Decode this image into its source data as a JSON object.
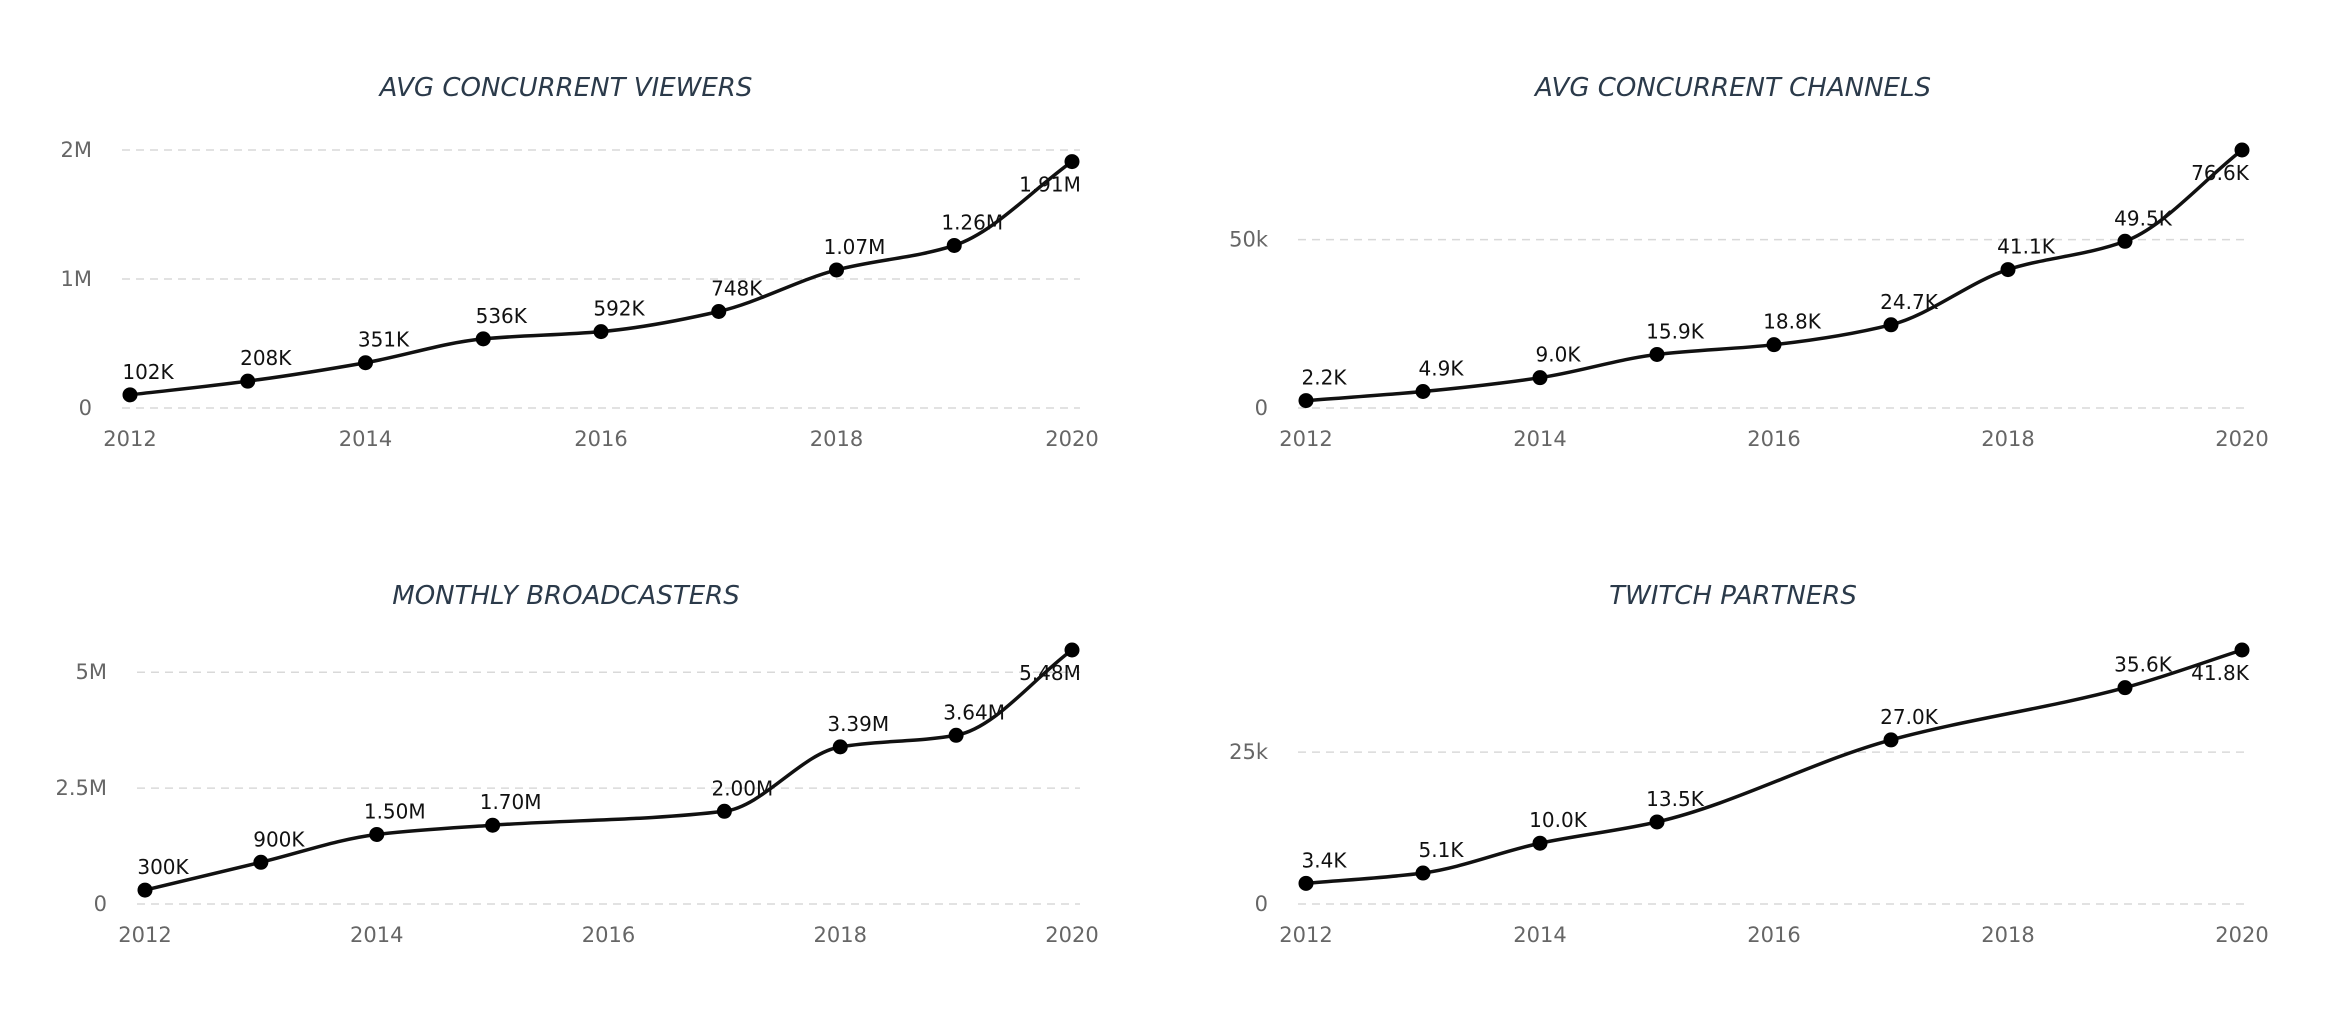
{
  "chart_data": [
    {
      "type": "line",
      "title": "AVG CONCURRENT VIEWERS",
      "x": [
        2012,
        2013,
        2014,
        2015,
        2016,
        2017,
        2018,
        2019,
        2020
      ],
      "values": [
        102000,
        208000,
        351000,
        536000,
        592000,
        748000,
        1070000,
        1260000,
        1910000
      ],
      "data_labels": [
        "102K",
        "208K",
        "351K",
        "536K",
        "592K",
        "748K",
        "1.07M",
        "1.26M",
        "1.91M"
      ],
      "xticks": [
        2012,
        2014,
        2016,
        2018,
        2020
      ],
      "xtick_labels": [
        "2012",
        "2014",
        "2016",
        "2018",
        "2020"
      ],
      "yticks": [
        0,
        1000000,
        2000000
      ],
      "ytick_labels": [
        "0",
        "1M",
        "2M"
      ],
      "xlim": [
        2012,
        2020
      ],
      "ylim": [
        0,
        2000000
      ],
      "grid": true
    },
    {
      "type": "line",
      "title": "AVG CONCURRENT CHANNELS",
      "x": [
        2012,
        2013,
        2014,
        2015,
        2016,
        2017,
        2018,
        2019,
        2020
      ],
      "values": [
        2200,
        4900,
        9000,
        15900,
        18800,
        24700,
        41100,
        49500,
        76600
      ],
      "data_labels": [
        "2.2K",
        "4.9K",
        "9.0K",
        "15.9K",
        "18.8K",
        "24.7K",
        "41.1K",
        "49.5K",
        "76.6K"
      ],
      "xticks": [
        2012,
        2014,
        2016,
        2018,
        2020
      ],
      "xtick_labels": [
        "2012",
        "2014",
        "2016",
        "2018",
        "2020"
      ],
      "yticks": [
        0,
        50000
      ],
      "ytick_labels": [
        "0",
        "50k"
      ],
      "xlim": [
        2012,
        2020
      ],
      "ylim": [
        0,
        76600
      ],
      "grid": true
    },
    {
      "type": "line",
      "title": "MONTHLY BROADCASTERS",
      "x": [
        2012,
        2013,
        2014,
        2015,
        2017,
        2018,
        2019,
        2020
      ],
      "values": [
        300000,
        900000,
        1500000,
        1700000,
        2000000,
        3390000,
        3640000,
        5480000
      ],
      "data_labels": [
        "300K",
        "900K",
        "1.50M",
        "1.70M",
        "2.00M",
        "3.39M",
        "3.64M",
        "5.48M"
      ],
      "xticks": [
        2012,
        2014,
        2016,
        2018,
        2020
      ],
      "xtick_labels": [
        "2012",
        "2014",
        "2016",
        "2018",
        "2020"
      ],
      "yticks": [
        0,
        2500000,
        5000000
      ],
      "ytick_labels": [
        "0",
        "2.5M",
        "5M"
      ],
      "xlim": [
        2012,
        2020
      ],
      "ylim": [
        0,
        5480000
      ],
      "grid": true
    },
    {
      "type": "line",
      "title": "TWITCH PARTNERS",
      "x": [
        2012,
        2013,
        2014,
        2015,
        2017,
        2019,
        2020
      ],
      "values": [
        3400,
        5100,
        10000,
        13500,
        27000,
        35600,
        41800
      ],
      "data_labels": [
        "3.4K",
        "5.1K",
        "10.0K",
        "13.5K",
        "27.0K",
        "35.6K",
        "41.8K"
      ],
      "xticks": [
        2012,
        2014,
        2016,
        2018,
        2020
      ],
      "xtick_labels": [
        "2012",
        "2014",
        "2016",
        "2018",
        "2020"
      ],
      "yticks": [
        0,
        25000
      ],
      "ytick_labels": [
        "0",
        "25k"
      ],
      "xlim": [
        2012,
        2020
      ],
      "ylim": [
        0,
        41800
      ],
      "grid": true
    }
  ]
}
